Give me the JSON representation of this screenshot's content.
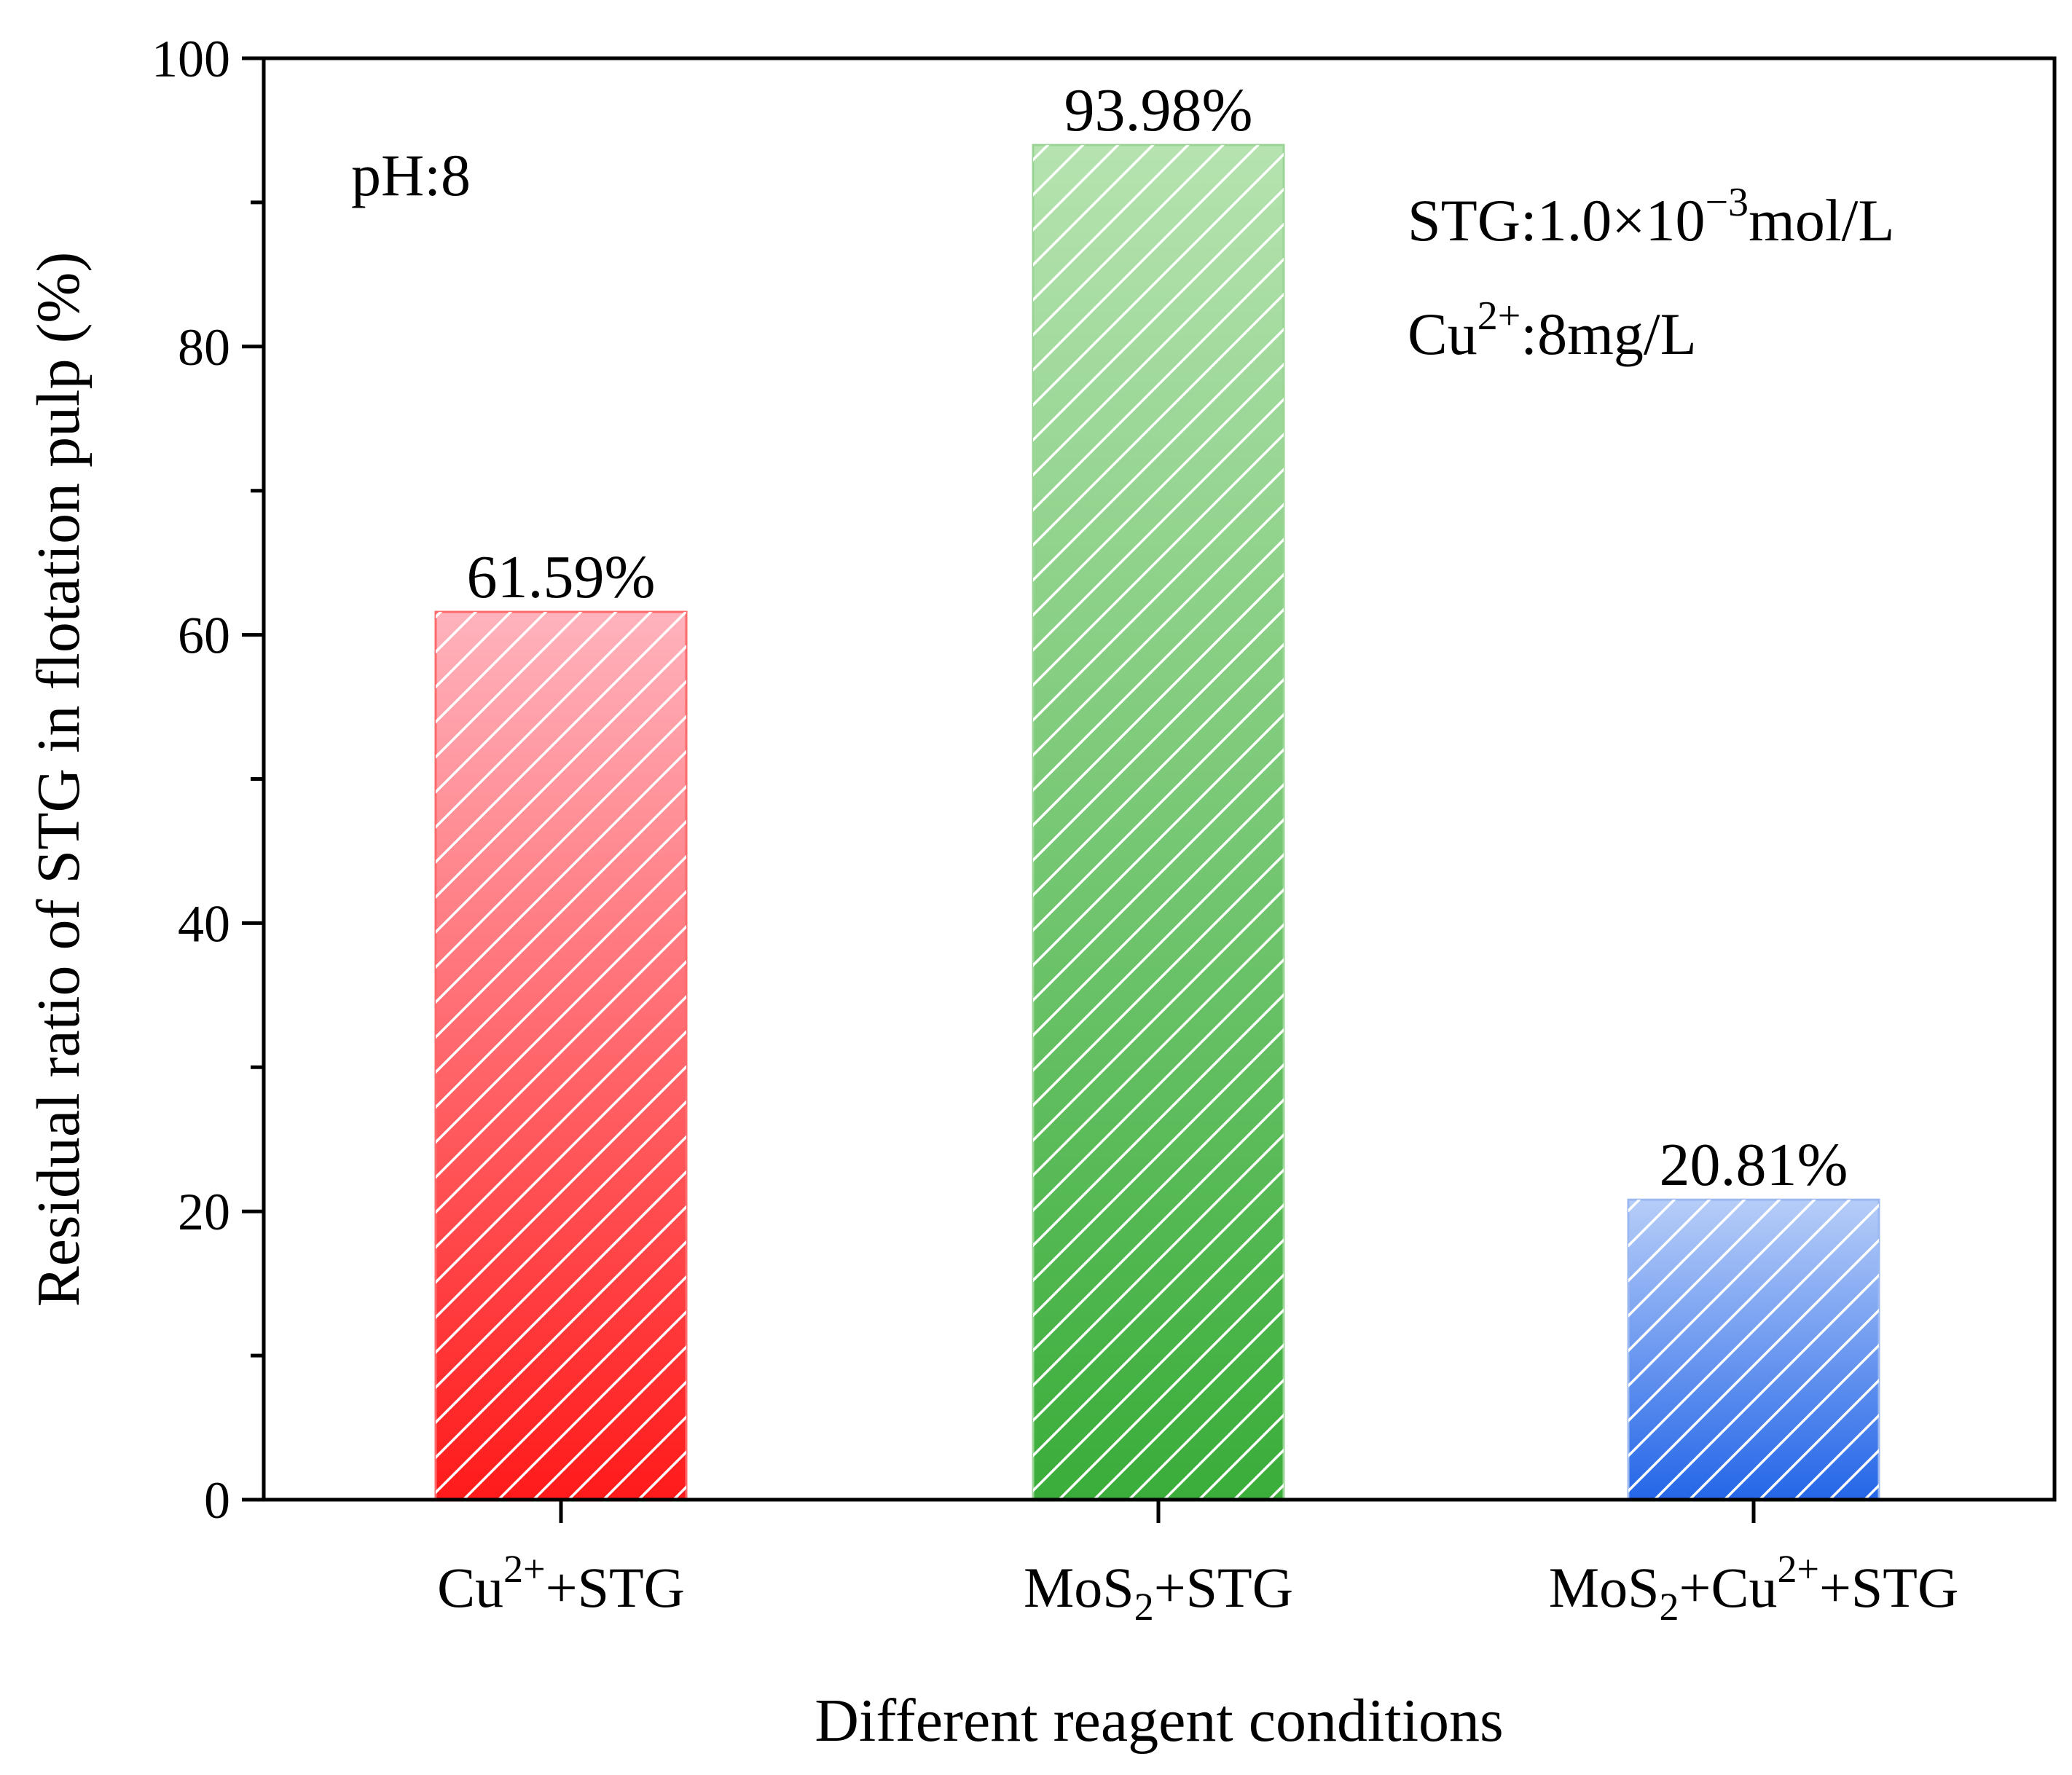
{
  "chart_data": {
    "type": "bar",
    "title": "",
    "xlabel": "Different reagent conditions",
    "ylabel": "Residual ratio of STG in flotation pulp (%)",
    "ylim": [
      0,
      100
    ],
    "yticks": [
      0,
      20,
      40,
      60,
      80,
      100
    ],
    "ytick_labels": [
      "0",
      "20",
      "40",
      "60",
      "80",
      "100"
    ],
    "categories": [
      {
        "base": "Cu",
        "sup": "2+",
        "rest": "+STG"
      },
      {
        "base": "MoS",
        "sub": "2",
        "rest": "+STG"
      },
      {
        "base": "MoS",
        "sub": "2",
        "mid": "+Cu",
        "sup": "2+",
        "rest": "+STG"
      }
    ],
    "values": [
      61.59,
      93.98,
      20.81
    ],
    "data_labels": [
      "61.59%",
      "93.98%",
      "20.81%"
    ],
    "bar_colors": [
      {
        "top": "#ffb3bd",
        "bottom": "#ff1a1a",
        "edge": "#ff6a6a"
      },
      {
        "top": "#b6e3b0",
        "bottom": "#3aad3a",
        "edge": "#9ad596"
      },
      {
        "top": "#b7cdf8",
        "bottom": "#2466e8",
        "edge": "#9cb8f0"
      }
    ],
    "hatch": "diagonal",
    "annotations": {
      "ph": "pH:8",
      "stg_prefix": "STG:1.0×10",
      "stg_exp": "−3",
      "stg_suffix": "mol/L",
      "cu_base": "Cu",
      "cu_sup": "2+",
      "cu_suffix": ":8mg/L"
    }
  }
}
